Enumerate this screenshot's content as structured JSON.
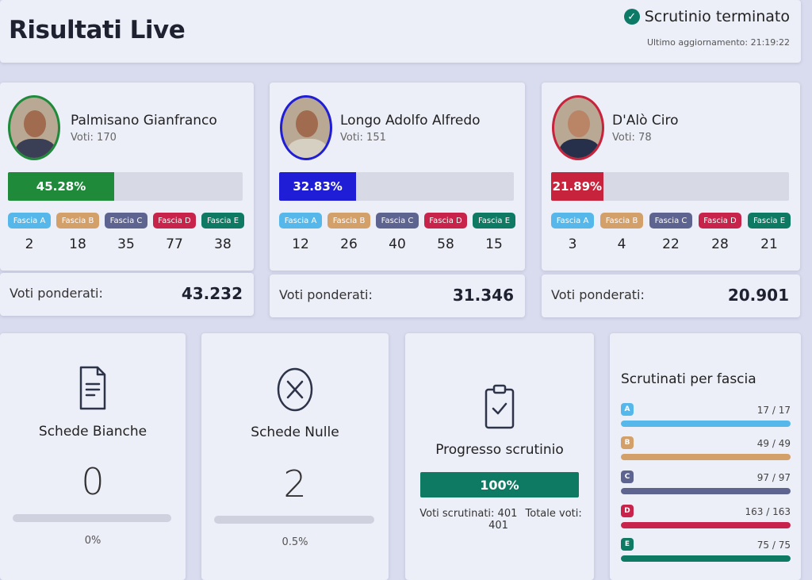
{
  "header": {
    "title": "Risultati Live",
    "status": "Scrutinio terminato",
    "updated": "Ultimo aggiornamento: 21:19:22"
  },
  "fascia_colors": [
    "#56b8ea",
    "#d4a06a",
    "#5e6490",
    "#c8234a",
    "#0f7a63"
  ],
  "candidates": [
    {
      "name": "Palmisano Gianfranco",
      "votes": "Voti: 170",
      "percent_label": "45.28%",
      "percent": 45.28,
      "color": "#1f8a3a",
      "fasce": [
        {
          "label": "Fascia A",
          "value": "2"
        },
        {
          "label": "Fascia B",
          "value": "18"
        },
        {
          "label": "Fascia C",
          "value": "35"
        },
        {
          "label": "Fascia D",
          "value": "77"
        },
        {
          "label": "Fascia E",
          "value": "38"
        }
      ],
      "weighted_label": "Voti ponderati:",
      "weighted_value": "43.232"
    },
    {
      "name": "Longo Adolfo Alfredo",
      "votes": "Voti: 151",
      "percent_label": "32.83%",
      "percent": 32.83,
      "color": "#1f1ed6",
      "fasce": [
        {
          "label": "Fascia A",
          "value": "12"
        },
        {
          "label": "Fascia B",
          "value": "26"
        },
        {
          "label": "Fascia C",
          "value": "40"
        },
        {
          "label": "Fascia D",
          "value": "58"
        },
        {
          "label": "Fascia E",
          "value": "15"
        }
      ],
      "weighted_label": "Voti ponderati:",
      "weighted_value": "31.346"
    },
    {
      "name": "D'Alò Ciro",
      "votes": "Voti: 78",
      "percent_label": "21.89%",
      "percent": 21.89,
      "color": "#c8233c",
      "fasce": [
        {
          "label": "Fascia A",
          "value": "3"
        },
        {
          "label": "Fascia B",
          "value": "4"
        },
        {
          "label": "Fascia C",
          "value": "22"
        },
        {
          "label": "Fascia D",
          "value": "28"
        },
        {
          "label": "Fascia E",
          "value": "21"
        }
      ],
      "weighted_label": "Voti ponderati:",
      "weighted_value": "20.901"
    }
  ],
  "schede_bianche": {
    "title": "Schede Bianche",
    "value": "0",
    "pct": "0%",
    "fraction": 0,
    "icon": "document-icon"
  },
  "schede_nulle": {
    "title": "Schede Nulle",
    "value": "2",
    "pct": "0.5%",
    "fraction": 0.005,
    "icon": "x-circle-icon"
  },
  "progresso": {
    "title": "Progresso scrutinio",
    "percent_label": "100%",
    "fraction": 1,
    "scrutinati": "Voti scrutinati: 401",
    "totale": "Totale voti: 401",
    "icon": "clipboard-check-icon"
  },
  "scrutinati_fascia": {
    "title": "Scrutinati per fascia",
    "rows": [
      {
        "letter": "A",
        "count": "17 / 17",
        "fraction": 1
      },
      {
        "letter": "B",
        "count": "49 / 49",
        "fraction": 1
      },
      {
        "letter": "C",
        "count": "97 / 97",
        "fraction": 1
      },
      {
        "letter": "D",
        "count": "163 / 163",
        "fraction": 1
      },
      {
        "letter": "E",
        "count": "75 / 75",
        "fraction": 1
      }
    ]
  }
}
